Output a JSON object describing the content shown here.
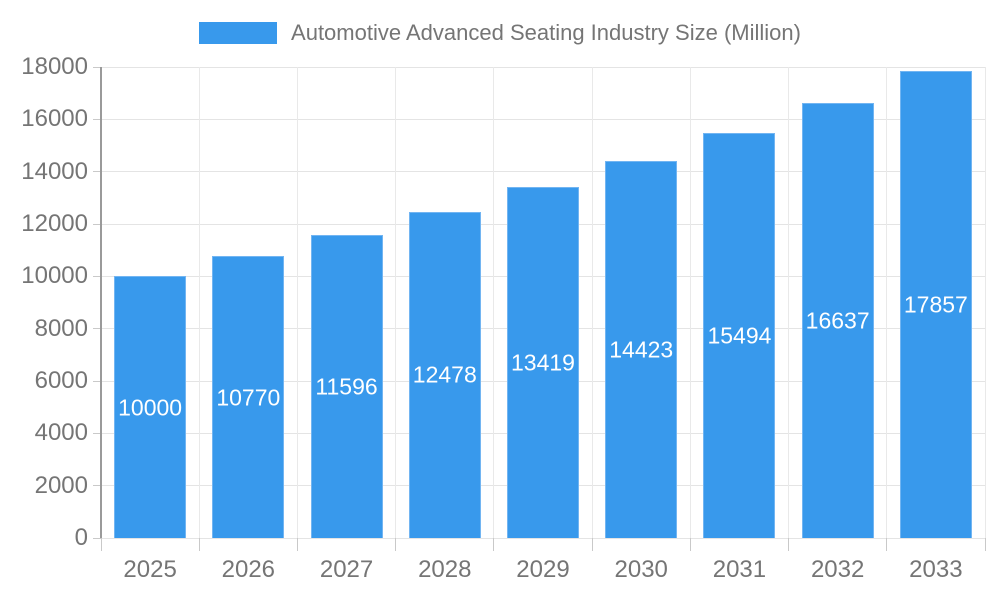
{
  "chart_data": {
    "type": "bar",
    "title": "Automotive Advanced Seating Industry Size (Million)",
    "legend_entries": [
      "Automotive Advanced Seating Industry Size (Million)"
    ],
    "legend_position": "top",
    "categories": [
      "2025",
      "2026",
      "2027",
      "2028",
      "2029",
      "2030",
      "2031",
      "2032",
      "2033"
    ],
    "values": [
      10000,
      10770,
      11596,
      12478,
      13419,
      14423,
      15494,
      16637,
      17857
    ],
    "bar_labels": [
      "10000",
      "10770",
      "11596",
      "12478",
      "13419",
      "14423",
      "15494",
      "16637",
      "17857"
    ],
    "xlabel": "",
    "ylabel": "",
    "ylim": [
      0,
      18000
    ],
    "yticks": [
      0,
      2000,
      4000,
      6000,
      8000,
      10000,
      12000,
      14000,
      16000,
      18000
    ],
    "grid": true,
    "colors": {
      "bar_fill": "#3899ec",
      "bar_border": "#72b5f2",
      "grid_line": "#e4e4e4",
      "axis_line": "#9a9a9a",
      "tick_mark": "#c9c9c9",
      "axis_text": "#757575",
      "bar_label_text": "#ffffff",
      "background": "#ffffff"
    }
  }
}
